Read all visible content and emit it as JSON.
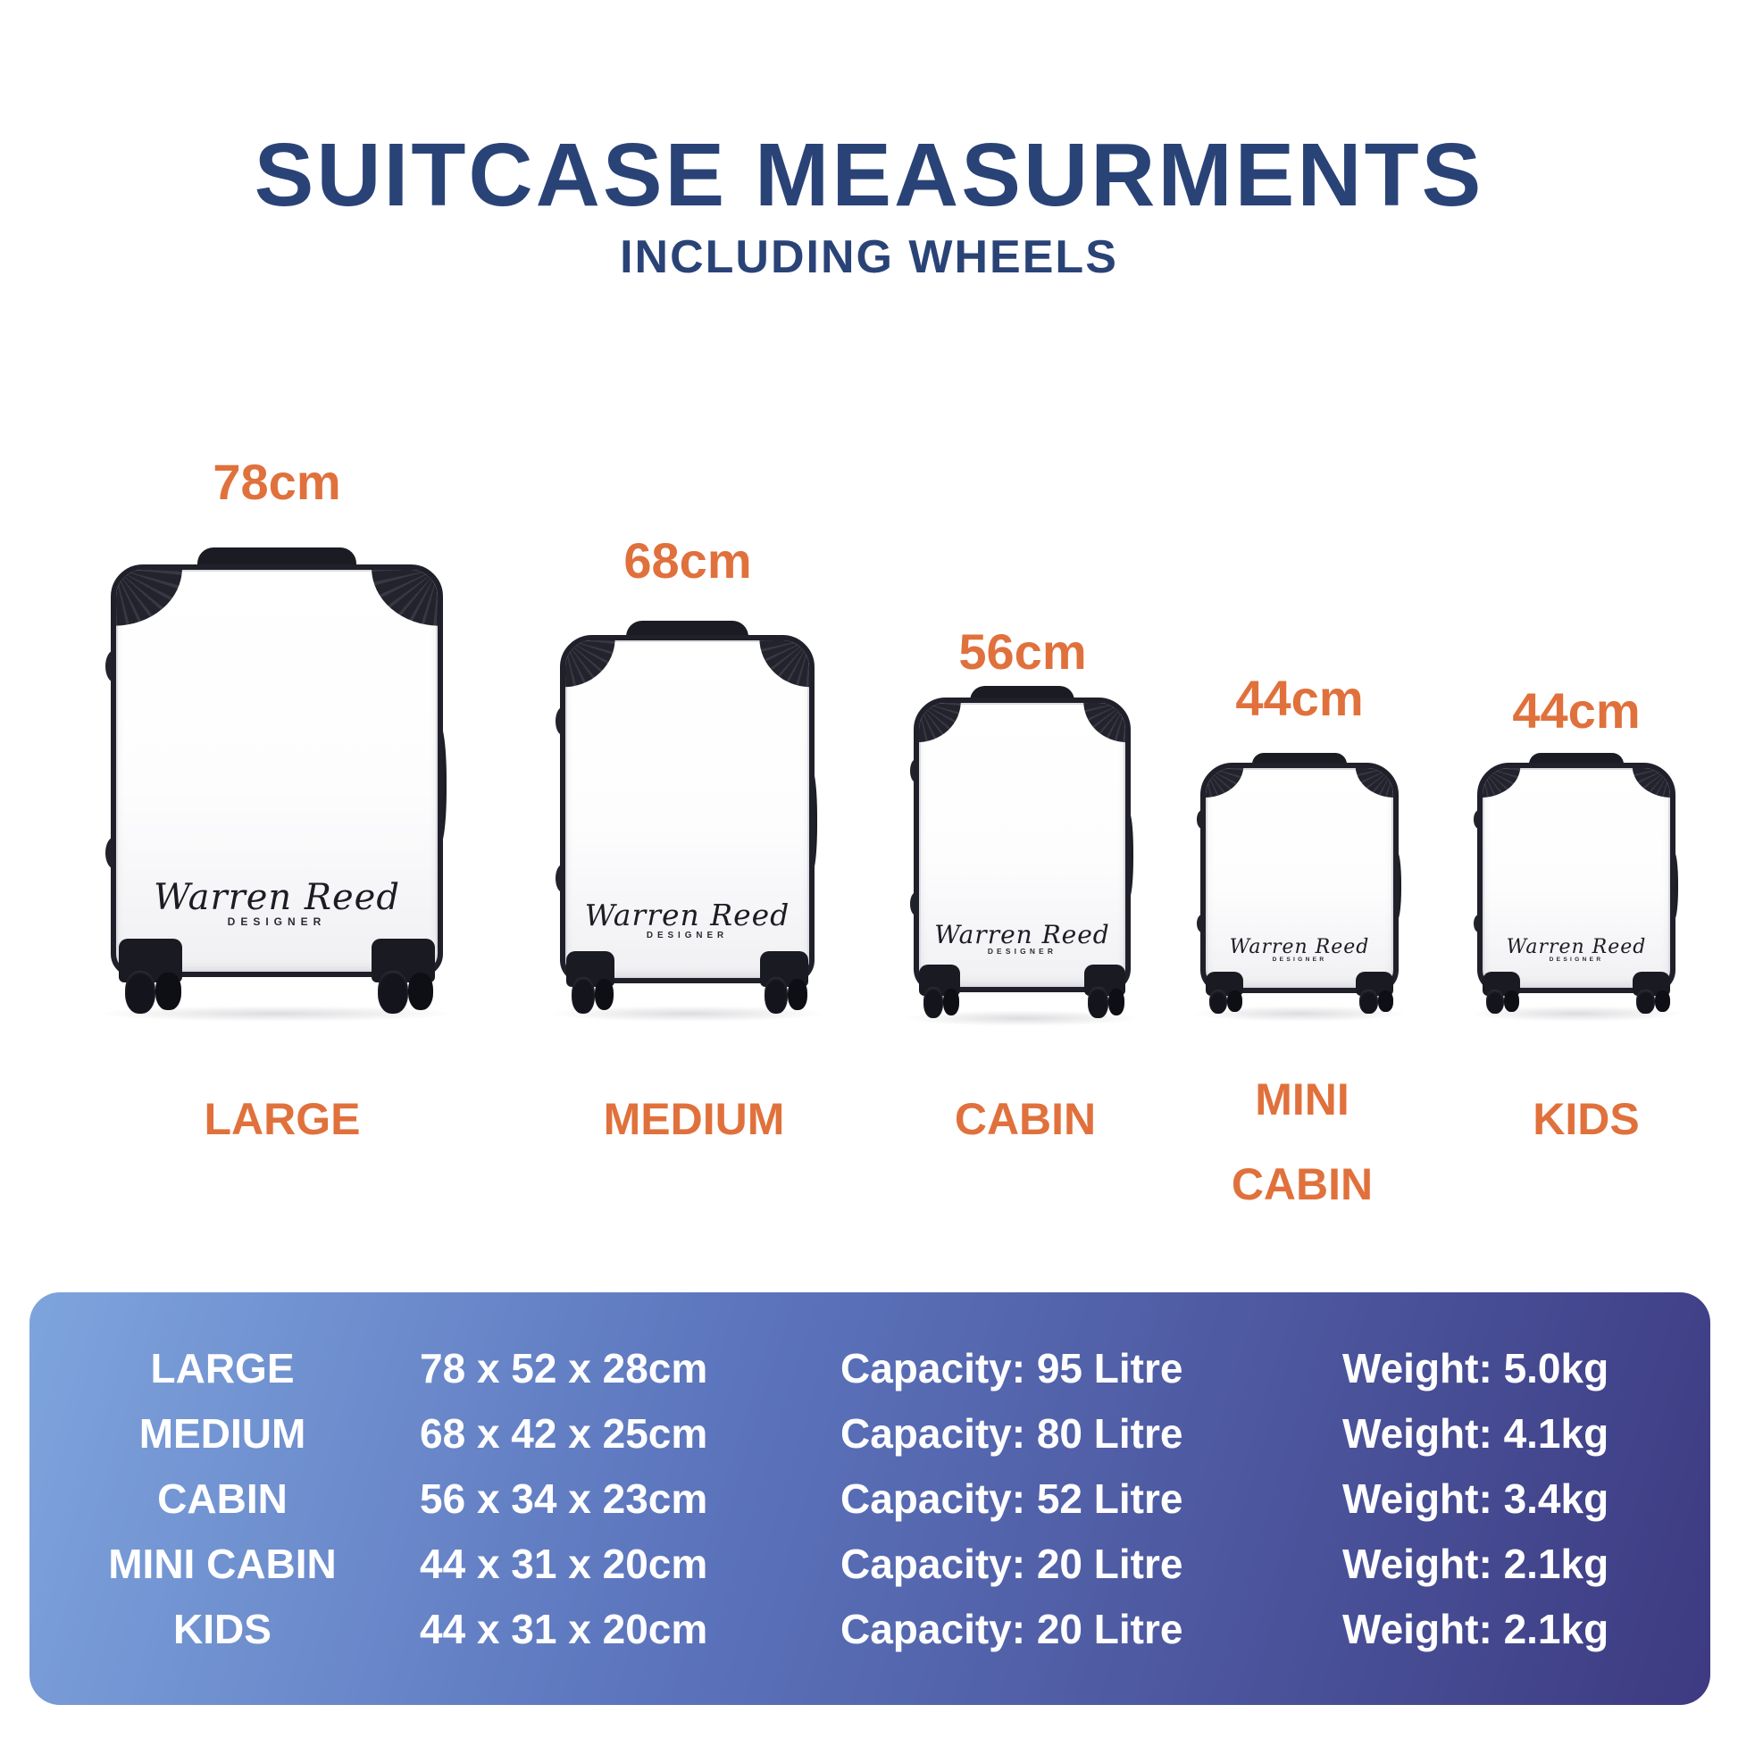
{
  "title": "SUITCASE MEASURMENTS",
  "subtitle": "INCLUDING WHEELS",
  "logo": {
    "script": "Warren Reed",
    "subtext": "DESIGNER"
  },
  "colors": {
    "accent_orange": "#E0713C",
    "heading_navy": "#2A4377",
    "table_gradient_light": "#7EA4DD",
    "table_gradient_dark": "#3D3A81",
    "case_dark": "#1D1D26",
    "text_white": "#FFFFFF"
  },
  "suitcases": [
    {
      "id": "large",
      "height_label": "78cm",
      "name": "LARGE"
    },
    {
      "id": "medium",
      "height_label": "68cm",
      "name": "MEDIUM"
    },
    {
      "id": "cabin",
      "height_label": "56cm",
      "name": "CABIN"
    },
    {
      "id": "mini-cabin",
      "height_label": "44cm",
      "name": "MINI CABIN"
    },
    {
      "id": "kids",
      "height_label": "44cm",
      "name": "KIDS"
    }
  ],
  "spec_table": {
    "rows": [
      {
        "name": "LARGE",
        "dimensions": "78 x 52 x 28cm",
        "capacity": "Capacity: 95 Litre",
        "weight": "Weight: 5.0kg"
      },
      {
        "name": "MEDIUM",
        "dimensions": "68 x 42 x 25cm",
        "capacity": "Capacity: 80 Litre",
        "weight": "Weight: 4.1kg"
      },
      {
        "name": "CABIN",
        "dimensions": "56 x 34 x 23cm",
        "capacity": "Capacity: 52 Litre",
        "weight": "Weight: 3.4kg"
      },
      {
        "name": "MINI CABIN",
        "dimensions": "44 x 31 x 20cm",
        "capacity": "Capacity: 20 Litre",
        "weight": "Weight: 2.1kg"
      },
      {
        "name": "KIDS",
        "dimensions": "44 x 31 x 20cm",
        "capacity": "Capacity: 20 Litre",
        "weight": "Weight: 2.1kg"
      }
    ]
  }
}
